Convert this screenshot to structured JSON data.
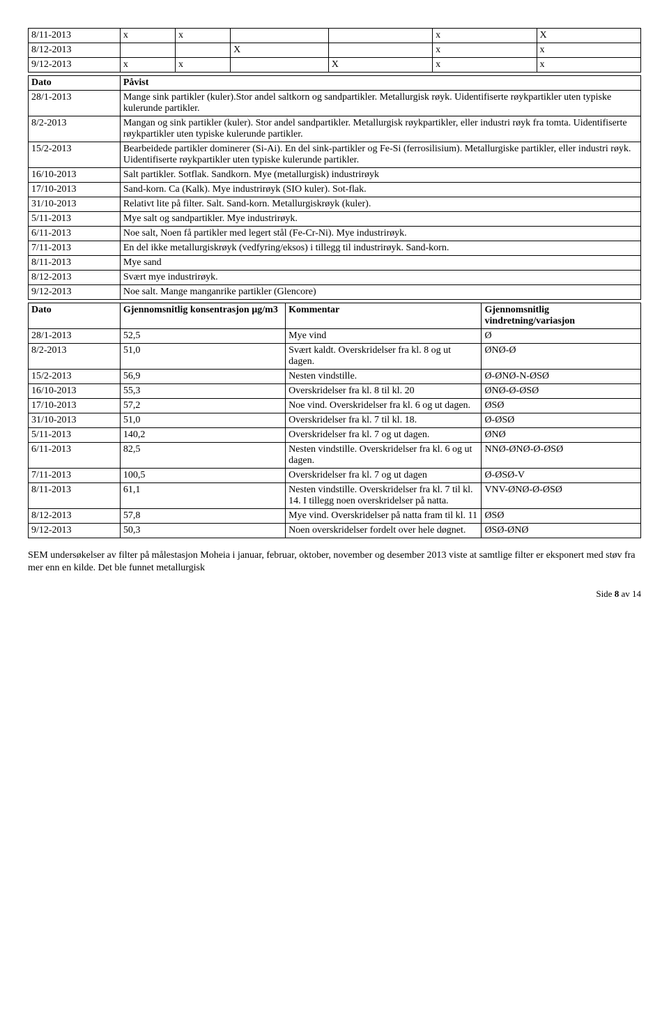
{
  "table1": {
    "rows": [
      [
        "8/11-2013",
        "x",
        "x",
        "",
        "",
        "x",
        "X"
      ],
      [
        "8/12-2013",
        "",
        "",
        "X",
        "",
        "x",
        "x"
      ],
      [
        "9/12-2013",
        "x",
        "x",
        "",
        "X",
        "x",
        "x"
      ]
    ],
    "col_widths": [
      "15%",
      "9%",
      "9%",
      "16%",
      "17%",
      "17%",
      "17%"
    ]
  },
  "table2": {
    "header": [
      "Dato",
      "Påvist"
    ],
    "rows": [
      [
        "28/1-2013",
        "Mange sink partikler (kuler).Stor andel saltkorn og sandpartikler. Metallurgisk røyk. Uidentifiserte røykpartikler uten typiske kulerunde partikler."
      ],
      [
        "8/2-2013",
        "Mangan og sink partikler (kuler). Stor andel sandpartikler. Metallurgisk røykpartikler, eller industri røyk fra tomta. Uidentifiserte røykpartikler uten typiske kulerunde partikler."
      ],
      [
        "15/2-2013",
        "Bearbeidede partikler dominerer (Si-Ai). En del sink-partikler og Fe-Si (ferrosilisium). Metallurgiske partikler, eller industri røyk. Uidentifiserte røykpartikler uten typiske kulerunde partikler."
      ],
      [
        "16/10-2013",
        "Salt partikler. Sotflak. Sandkorn. Mye (metallurgisk) industrirøyk"
      ],
      [
        "17/10-2013",
        "Sand-korn. Ca (Kalk). Mye industrirøyk (SIO kuler). Sot-flak."
      ],
      [
        "31/10-2013",
        "Relativt lite på filter. Salt. Sand-korn. Metallurgiskrøyk (kuler)."
      ],
      [
        "5/11-2013",
        "Mye salt og sandpartikler. Mye industrirøyk."
      ],
      [
        "6/11-2013",
        "Noe salt, Noen få partikler med legert stål (Fe-Cr-Ni). Mye industrirøyk."
      ],
      [
        "7/11-2013",
        "En del ikke metallurgiskrøyk (vedfyring/eksos) i tillegg til industrirøyk. Sand-korn."
      ],
      [
        "8/11-2013",
        "Mye sand"
      ],
      [
        "8/12-2013",
        "Svært mye industrirøyk."
      ],
      [
        "9/12-2013",
        "Noe salt. Mange manganrike partikler (Glencore)"
      ]
    ],
    "col_widths": [
      "15%",
      "85%"
    ]
  },
  "table3": {
    "header": [
      "Dato",
      "Gjennomsnitlig konsentrasjon µg/m3",
      "Kommentar",
      "Gjennomsnitlig vindretning/variasjon"
    ],
    "rows": [
      [
        "28/1-2013",
        "52,5",
        "Mye vind",
        "Ø"
      ],
      [
        "8/2-2013",
        "51,0",
        "Svært kaldt. Overskridelser fra kl. 8 og ut dagen.",
        "ØNØ-Ø"
      ],
      [
        "15/2-2013",
        "56,9",
        "Nesten vindstille.",
        "Ø-ØNØ-N-ØSØ"
      ],
      [
        "16/10-2013",
        "55,3",
        "Overskridelser fra kl. 8 til kl. 20",
        "ØNØ-Ø-ØSØ"
      ],
      [
        "17/10-2013",
        "57,2",
        "Noe vind. Overskridelser fra kl. 6 og ut dagen.",
        "ØSØ"
      ],
      [
        "31/10-2013",
        "51,0",
        "Overskridelser fra kl. 7 til kl. 18.",
        "Ø-ØSØ"
      ],
      [
        "5/11-2013",
        "140,2",
        "Overskridelser fra kl. 7 og ut dagen.",
        "ØNØ"
      ],
      [
        "6/11-2013",
        "82,5",
        "Nesten vindstille. Overskridelser fra kl. 6 og ut dagen.",
        "NNØ-ØNØ-Ø-ØSØ"
      ],
      [
        "7/11-2013",
        "100,5",
        "Overskridelser fra kl. 7 og ut dagen",
        "Ø-ØSØ-V"
      ],
      [
        "8/11-2013",
        "61,1",
        "Nesten vindstille. Overskridelser fra kl. 7 til kl. 14. I tillegg noen overskridelser på natta.",
        "VNV-ØNØ-Ø-ØSØ"
      ],
      [
        "8/12-2013",
        "57,8",
        "Mye vind. Overskridelser på natta fram til kl. 11",
        "ØSØ"
      ],
      [
        "9/12-2013",
        "50,3",
        "Noen overskridelser fordelt over hele døgnet.",
        "ØSØ-ØNØ"
      ]
    ],
    "col_widths": [
      "15%",
      "27%",
      "32%",
      "26%"
    ]
  },
  "paragraph": "SEM undersøkelser av filter på målestasjon Moheia i januar, februar, oktober, november og desember 2013 viste at samtlige filter er eksponert med støv fra mer enn en kilde. Det ble funnet metallurgisk",
  "footer_prefix": "Side ",
  "footer_page": "8",
  "footer_suffix": " av 14"
}
